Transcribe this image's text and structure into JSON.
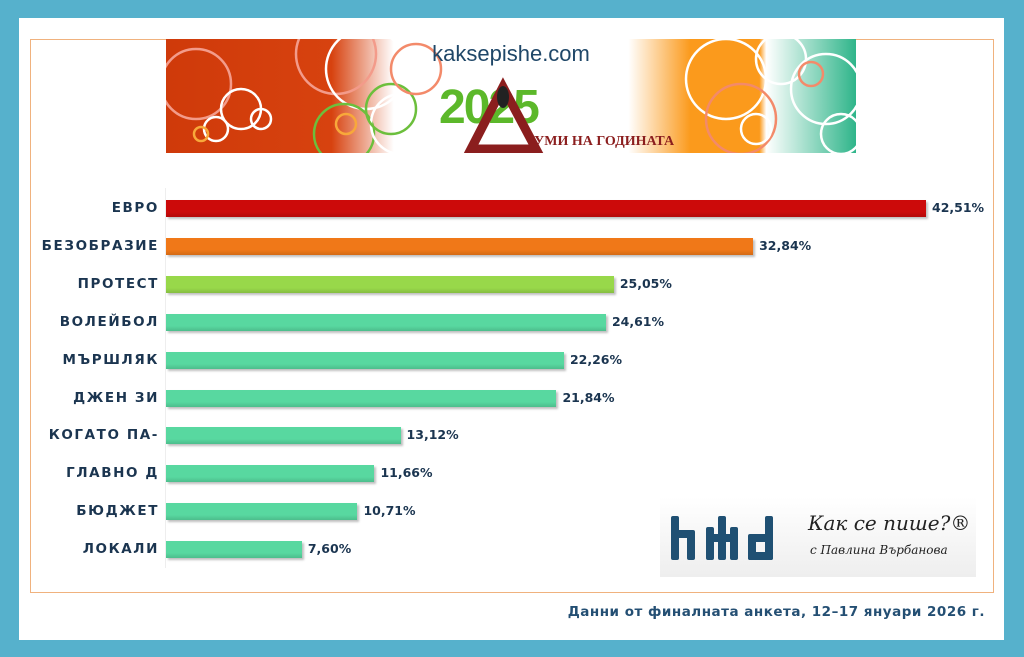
{
  "banner": {
    "site": "kaksepishe.com",
    "year": "2025",
    "subtitle": "УМИ НА ГОДИНАТА"
  },
  "brand": {
    "title": "Как се пише?®",
    "subtitle": "с Павлина Върбанова"
  },
  "footer": "Данни от финалната анкета, 12–17 януари 2026 г.",
  "chart_data": {
    "type": "bar",
    "orientation": "horizontal",
    "title": "Думи на годината 2025",
    "categories": [
      "ЕВРО",
      "БЕЗОБРАЗИЕ",
      "ПРОТЕСТ",
      "ВОЛЕЙБОЛ",
      "МЪРШЛЯК",
      "ДЖЕН ЗИ",
      "КОГАТО ПА-",
      "ГЛАВНО Д",
      "БЮДЖЕТ",
      "ЛОКАЛИ"
    ],
    "values": [
      42.51,
      32.84,
      25.05,
      24.61,
      22.26,
      21.84,
      13.12,
      11.66,
      10.71,
      7.6
    ],
    "labels": [
      "42,51%",
      "32,84%",
      "25,05%",
      "24,61%",
      "22,26%",
      "21,84%",
      "13,12%",
      "11,66%",
      "10,71%",
      "7,60%"
    ],
    "colors": [
      "#cc0a0a",
      "#f07818",
      "#98d84a",
      "#58d8a0",
      "#58d8a0",
      "#58d8a0",
      "#58d8a0",
      "#58d8a0",
      "#58d8a0",
      "#58d8a0"
    ],
    "xlabel": "",
    "ylabel": "",
    "xlim": [
      0,
      45
    ],
    "grid": false,
    "legend": null,
    "source": "Данни от финалната анкета, 12–17 януари 2026 г."
  }
}
